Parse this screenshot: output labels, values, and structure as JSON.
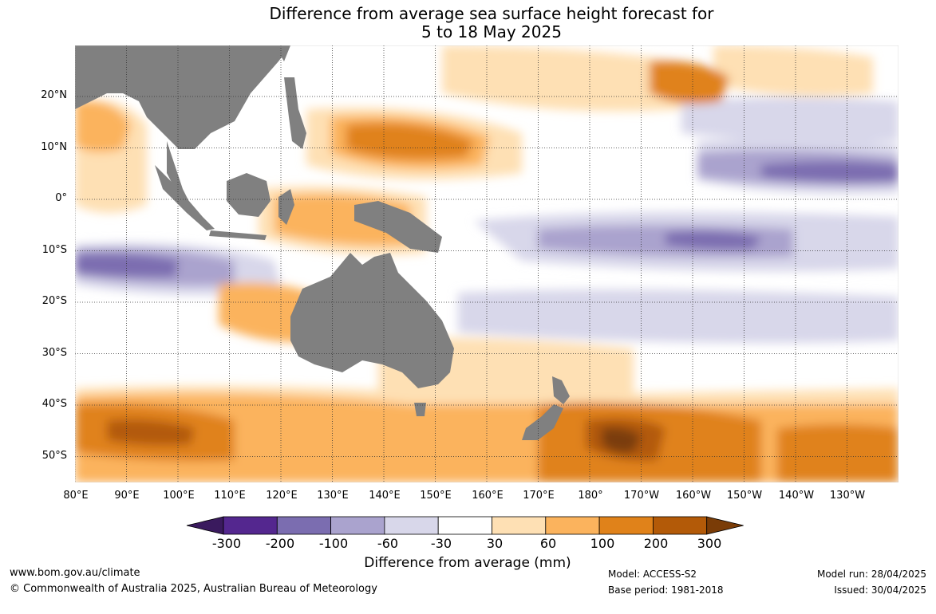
{
  "title": {
    "line1": "Difference from average sea surface height forecast for",
    "line2": "5 to 18 May 2025"
  },
  "map": {
    "lat_labels": [
      "20°N",
      "10°N",
      "0°",
      "10°S",
      "20°S",
      "30°S",
      "40°S",
      "50°S"
    ],
    "lon_labels": [
      "80°E",
      "90°E",
      "100°E",
      "110°E",
      "120°E",
      "130°E",
      "140°E",
      "150°E",
      "160°E",
      "170°E",
      "180°",
      "170°W",
      "160°W",
      "150°W",
      "140°W",
      "130°W"
    ],
    "land_color": "#808080",
    "gridline_style": "dotted"
  },
  "legend": {
    "title": "Difference from average (mm)",
    "tick_labels": [
      "-300",
      "-200",
      "-100",
      "-60",
      "-30",
      "30",
      "60",
      "100",
      "200",
      "300"
    ],
    "bins": [
      {
        "range": "< -300",
        "color": "#3a1a5e"
      },
      {
        "range": "-300 to -200",
        "color": "#54278f"
      },
      {
        "range": "-200 to -100",
        "color": "#7b6db0"
      },
      {
        "range": "-100 to -60",
        "color": "#aaa3ce"
      },
      {
        "range": "-60 to -30",
        "color": "#d8d7ea"
      },
      {
        "range": "-30 to 30",
        "color": "#ffffff"
      },
      {
        "range": "30 to 60",
        "color": "#fee0b4"
      },
      {
        "range": "60 to 100",
        "color": "#fbb35d"
      },
      {
        "range": "100 to 200",
        "color": "#e0821a"
      },
      {
        "range": "200 to 300",
        "color": "#b35a08"
      },
      {
        "range": "> 300",
        "color": "#7a3c07"
      }
    ]
  },
  "footer": {
    "website": "www.bom.gov.au/climate",
    "copyright": "© Commonwealth of Australia 2025, Australian Bureau of Meteorology",
    "model": "Model: ACCESS-S2",
    "base_period": "Base period: 1981-2018",
    "model_run": "Model run: 28/04/2025",
    "issued": "Issued: 30/04/2025"
  }
}
